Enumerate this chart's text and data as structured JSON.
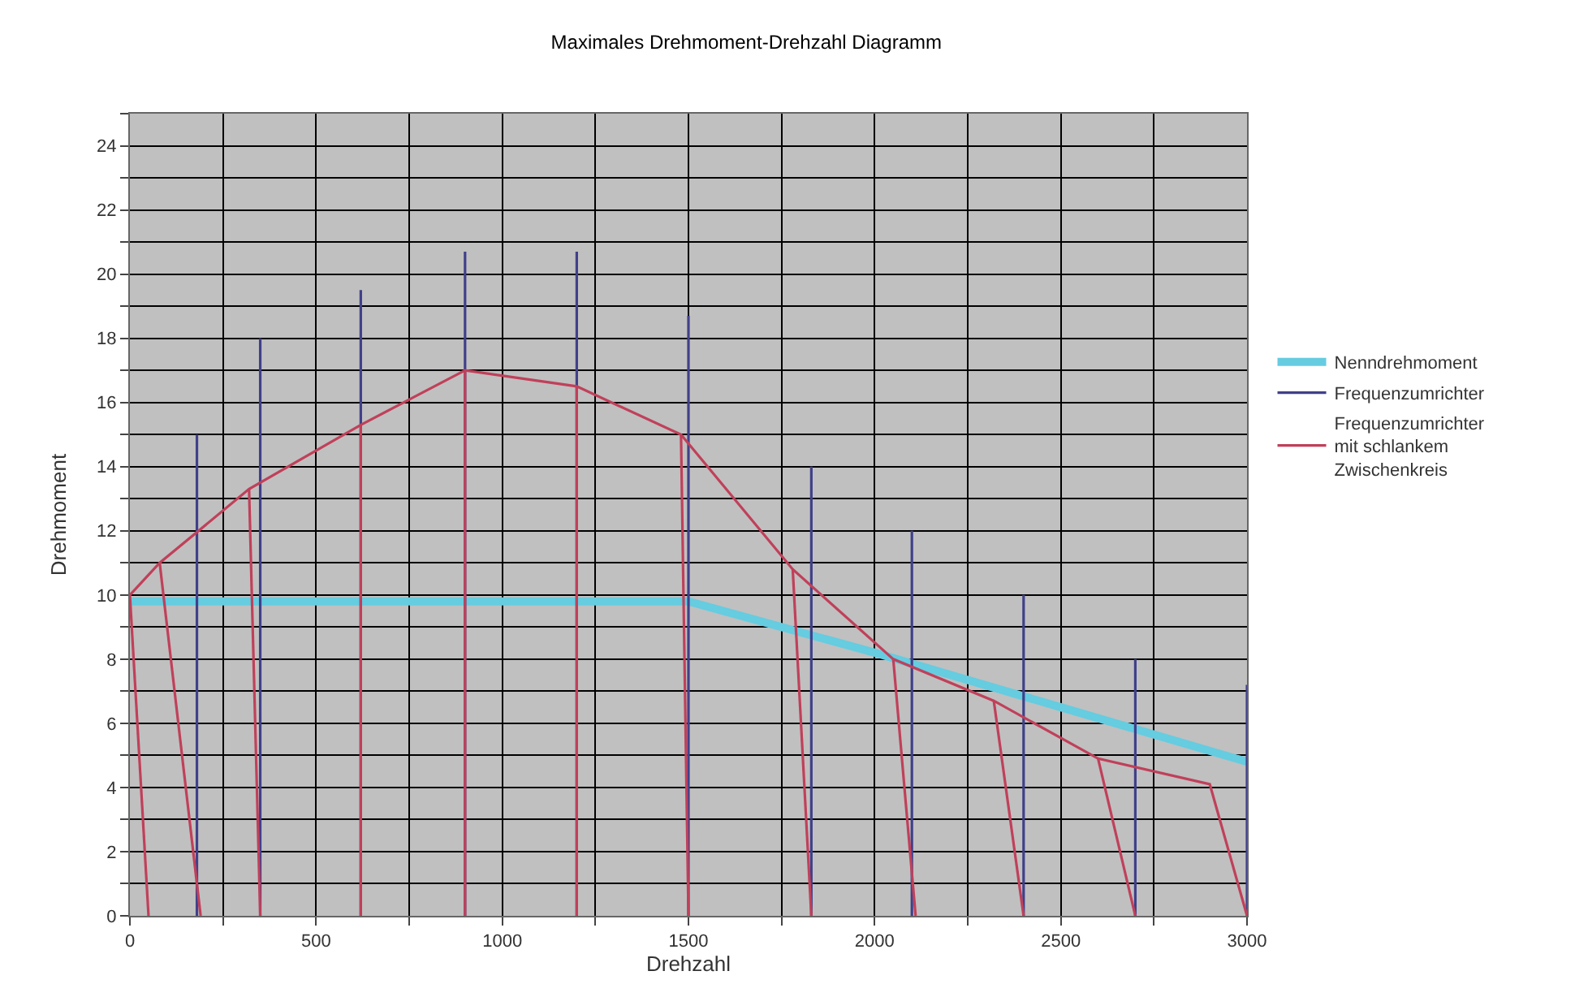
{
  "chart_data": {
    "type": "line",
    "title": "Maximales Drehmoment-Drehzahl Diagramm",
    "xlabel": "Drehzahl",
    "ylabel": "Drehmoment",
    "xlim": [
      0,
      3000
    ],
    "ylim": [
      0,
      25
    ],
    "xticks": [
      0,
      {
        "value": 250,
        "label": null
      },
      500,
      {
        "value": 750,
        "label": null
      },
      1000,
      {
        "value": 1250,
        "label": null
      },
      1500,
      {
        "value": 1750,
        "label": null
      },
      2000,
      {
        "value": 2250,
        "label": null
      },
      2500,
      {
        "value": 2750,
        "label": null
      },
      3000
    ],
    "yticks": [
      0,
      {
        "value": 1,
        "label": null
      },
      2,
      {
        "value": 3,
        "label": null
      },
      4,
      {
        "value": 5,
        "label": null
      },
      6,
      {
        "value": 7,
        "label": null
      },
      8,
      {
        "value": 9,
        "label": null
      },
      10,
      {
        "value": 11,
        "label": null
      },
      12,
      {
        "value": 13,
        "label": null
      },
      14,
      {
        "value": 15,
        "label": null
      },
      16,
      {
        "value": 17,
        "label": null
      },
      18,
      {
        "value": 19,
        "label": null
      },
      20,
      {
        "value": 21,
        "label": null
      },
      22,
      {
        "value": 23,
        "label": null
      },
      24,
      {
        "value": 25,
        "label": null
      }
    ],
    "grid": true,
    "legend": "right",
    "marker": "none",
    "line_style": "solid",
    "series": [
      {
        "name": "Nenndrehmoment",
        "color": "#66cce0",
        "x": [
          0,
          1500,
          2000,
          2500,
          3000
        ],
        "values": [
          9.8,
          9.8,
          8.2,
          6.5,
          4.8
        ]
      },
      {
        "name": "Frequenzumrichter",
        "color": "#40408a",
        "x": [
          180,
          180,
          null,
          350,
          350,
          null,
          620,
          620,
          null,
          900,
          900,
          null,
          1200,
          1200,
          null,
          1500,
          1500,
          null,
          1830,
          1830,
          null,
          2100,
          2100,
          null,
          2400,
          2400,
          null,
          2700,
          2700,
          null,
          3000,
          3000
        ],
        "values": [
          0,
          15,
          null,
          0,
          18,
          null,
          0,
          19.5,
          null,
          0,
          20.7,
          null,
          0,
          20.7,
          null,
          0,
          18.7,
          null,
          0,
          14,
          null,
          0,
          12,
          null,
          0,
          10,
          null,
          0,
          8,
          null,
          0,
          7.2
        ]
      },
      {
        "name": "Frequenzumrichter\nmit schlankem\nZwischenkreis",
        "color": "#c0405a",
        "x": [
          0,
          80,
          320,
          620,
          900,
          1200,
          1480,
          1780,
          2050,
          2320,
          2600,
          2900,
          3000,
          null,
          0,
          50,
          null,
          80,
          190,
          null,
          320,
          350,
          null,
          620,
          620,
          null,
          900,
          900,
          null,
          1200,
          1200,
          null,
          1480,
          1500,
          null,
          1780,
          1830,
          null,
          2050,
          2110,
          null,
          2320,
          2400,
          null,
          2600,
          2700
        ],
        "values": [
          10,
          11,
          13.3,
          15.3,
          17,
          16.5,
          15,
          10.8,
          8,
          6.7,
          4.9,
          4.1,
          0,
          null,
          10,
          0,
          null,
          11,
          0,
          null,
          13.3,
          0,
          null,
          15.3,
          0,
          null,
          17,
          0,
          null,
          16.5,
          0,
          null,
          15,
          0,
          null,
          10.8,
          0,
          null,
          8,
          0,
          null,
          6.7,
          0,
          null,
          4.9,
          0
        ]
      }
    ]
  }
}
